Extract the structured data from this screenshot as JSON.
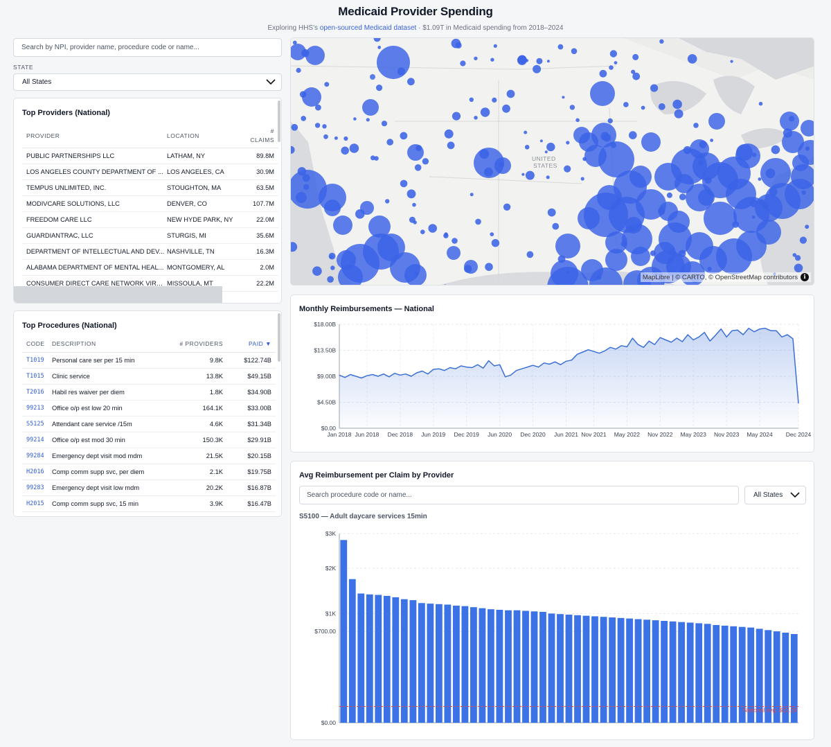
{
  "header": {
    "title": "Medicaid Provider Spending",
    "subtitle_pre": "Exploring HHS's",
    "subtitle_link": "open-sourced Medicaid dataset",
    "subtitle_post": "· $1.09T in Medicaid spending from 2018–2024"
  },
  "search": {
    "placeholder": "Search by NPI, provider name, procedure code or name..."
  },
  "state_filter": {
    "label": "STATE",
    "selected": "All States"
  },
  "providers": {
    "title": "Top Providers (National)",
    "columns": {
      "provider": "PROVIDER",
      "location": "LOCATION",
      "claims_hash": "#",
      "claims": "CLAIMS"
    },
    "rows": [
      {
        "name": "PUBLIC PARTNERSHIPS LLC",
        "location": "LATHAM, NY",
        "claims": "89.8M"
      },
      {
        "name": "LOS ANGELES COUNTY DEPARTMENT OF ...",
        "location": "LOS ANGELES, CA",
        "claims": "30.9M"
      },
      {
        "name": "TEMPUS UNLIMITED, INC.",
        "location": "STOUGHTON, MA",
        "claims": "63.5M"
      },
      {
        "name": "MODIVCARE SOLUTIONS, LLC",
        "location": "DENVER, CO",
        "claims": "107.7M"
      },
      {
        "name": "FREEDOM CARE LLC",
        "location": "NEW HYDE PARK, NY",
        "claims": "22.0M"
      },
      {
        "name": "GUARDIANTRAC, LLC",
        "location": "STURGIS, MI",
        "claims": "35.6M"
      },
      {
        "name": "DEPARTMENT OF INTELLECTUAL AND DEV...",
        "location": "NASHVILLE, TN",
        "claims": "16.3M"
      },
      {
        "name": "ALABAMA DEPARTMENT OF MENTAL HEAL...",
        "location": "MONTGOMERY, AL",
        "claims": "2.0M"
      },
      {
        "name": "CONSUMER DIRECT CARE NETWORK VIRGI...",
        "location": "MISSOULA, MT",
        "claims": "22.2M"
      }
    ]
  },
  "procedures": {
    "title": "Top Procedures (National)",
    "columns": {
      "code": "CODE",
      "description": "DESCRIPTION",
      "providers": "# PROVIDERS",
      "paid": "PAID ▼"
    },
    "rows": [
      {
        "code": "T1019",
        "description": "Personal care ser per 15 min",
        "providers": "9.8K",
        "paid": "$122.74B"
      },
      {
        "code": "T1015",
        "description": "Clinic service",
        "providers": "13.8K",
        "paid": "$49.15B"
      },
      {
        "code": "T2016",
        "description": "Habil res waiver per diem",
        "providers": "1.8K",
        "paid": "$34.90B"
      },
      {
        "code": "99213",
        "description": "Office o/p est low 20 min",
        "providers": "164.1K",
        "paid": "$33.00B"
      },
      {
        "code": "S5125",
        "description": "Attendant care service /15m",
        "providers": "4.6K",
        "paid": "$31.34B"
      },
      {
        "code": "99214",
        "description": "Office o/p est mod 30 min",
        "providers": "150.3K",
        "paid": "$29.91B"
      },
      {
        "code": "99284",
        "description": "Emergency dept visit mod mdm",
        "providers": "21.5K",
        "paid": "$20.15B"
      },
      {
        "code": "H2016",
        "description": "Comp comm supp svc, per diem",
        "providers": "2.1K",
        "paid": "$19.75B"
      },
      {
        "code": "99283",
        "description": "Emergency dept visit low mdm",
        "providers": "20.2K",
        "paid": "$16.87B"
      },
      {
        "code": "H2015",
        "description": "Comp comm supp svc, 15 min",
        "providers": "3.9K",
        "paid": "$16.47B"
      }
    ]
  },
  "map": {
    "country_label_1": "UNITED",
    "country_label_2": "STATES",
    "attribution": "MapLibre | © CARTO, © OpenStreetMap contributors",
    "info_glyph": "i",
    "bubble_color": "#3b63e6"
  },
  "chart_data": [
    {
      "type": "area",
      "title": "Monthly Reimbursements — National",
      "ylabel": "",
      "ylim": [
        0,
        18
      ],
      "y_unit": "billions USD",
      "y_ticks": [
        "$0.00",
        "$4.50B",
        "$9.00B",
        "$13.50B",
        "$18.00B"
      ],
      "x_tick_labels": [
        "Jan 2018",
        "Jun 2018",
        "Dec 2018",
        "Jun 2019",
        "Dec 2019",
        "Jun 2020",
        "Dec 2020",
        "Jun 2021",
        "Nov 2021",
        "May 2022",
        "Nov 2022",
        "May 2023",
        "Nov 2023",
        "May 2024",
        "Dec 2024"
      ],
      "x_tick_months": [
        0,
        5,
        11,
        17,
        23,
        29,
        35,
        41,
        46,
        52,
        58,
        64,
        70,
        76,
        83
      ],
      "values": [
        9.2,
        8.8,
        9.3,
        9.0,
        8.7,
        9.1,
        9.3,
        9.0,
        9.4,
        8.9,
        9.5,
        9.2,
        9.4,
        9.0,
        9.6,
        9.9,
        9.4,
        10.2,
        10.3,
        10.0,
        10.5,
        10.3,
        10.8,
        10.6,
        10.5,
        11.0,
        10.4,
        11.7,
        10.8,
        11.0,
        8.9,
        9.2,
        10.0,
        10.3,
        10.6,
        10.9,
        10.6,
        11.3,
        11.1,
        11.5,
        11.0,
        11.6,
        11.8,
        12.8,
        13.2,
        13.6,
        13.3,
        13.0,
        13.4,
        14.0,
        13.7,
        14.3,
        14.1,
        15.6,
        14.5,
        14.0,
        15.1,
        14.5,
        15.7,
        15.3,
        14.9,
        15.6,
        15.0,
        16.2,
        15.3,
        15.8,
        16.6,
        15.1,
        16.1,
        17.2,
        15.8,
        16.9,
        17.0,
        16.2,
        17.3,
        16.7,
        17.2,
        17.3,
        16.9,
        16.9,
        15.8,
        16.2,
        15.5,
        4.3
      ],
      "color": "#3b6fd8"
    },
    {
      "type": "bar",
      "title": "Avg Reimbursement per Claim by Provider",
      "subtitle": "S5100 — Adult daycare services 15min",
      "search_placeholder": "Search procedure code or name...",
      "state_selected": "All States",
      "y_scale": "sqrt",
      "ylim": [
        0,
        3000
      ],
      "y_ticks": [
        0,
        700,
        1000,
        2000,
        3000
      ],
      "y_tick_labels": [
        "$0.00",
        "$700.00",
        "$1K",
        "$2K",
        "$3K"
      ],
      "values": [
        2800,
        1730,
        1400,
        1380,
        1370,
        1350,
        1320,
        1280,
        1260,
        1200,
        1190,
        1180,
        1170,
        1150,
        1140,
        1120,
        1100,
        1080,
        1070,
        1060,
        1060,
        1050,
        1040,
        1030,
        1000,
        990,
        980,
        970,
        960,
        950,
        940,
        930,
        920,
        910,
        900,
        890,
        880,
        870,
        860,
        850,
        840,
        830,
        820,
        800,
        790,
        780,
        770,
        760,
        740,
        720,
        700,
        680,
        660
      ],
      "reference_label": "National avg: $22.29",
      "reference_value": 22.29,
      "color": "#3b72e6"
    }
  ]
}
